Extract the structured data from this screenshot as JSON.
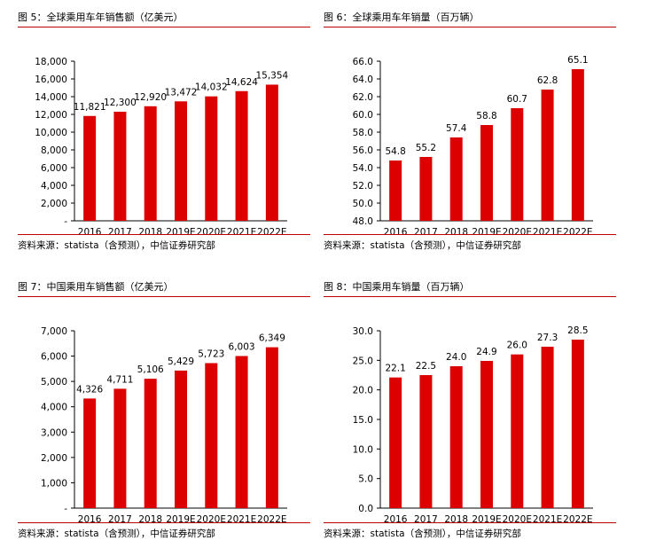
{
  "colors": {
    "bar": "#dc0000",
    "rule": "#c00000",
    "axis": "#000000"
  },
  "chart_data": [
    {
      "type": "bar",
      "title": "图 5：全球乘用车年销售额（亿美元）",
      "source": "资料来源：statista（含预测），中信证券研究部",
      "categories": [
        "2016",
        "2017",
        "2018",
        "2019E",
        "2020E",
        "2021E",
        "2022E"
      ],
      "values": [
        11821,
        12300,
        12920,
        13472,
        14032,
        14624,
        15354
      ],
      "value_labels": [
        "11,821",
        "12,300",
        "12,920",
        "13,472",
        "14,032",
        "14,624",
        "15,354"
      ],
      "ylim": [
        0,
        18000
      ],
      "yticks": [
        "-",
        "2,000",
        "4,000",
        "6,000",
        "8,000",
        "10,000",
        "12,000",
        "14,000",
        "16,000",
        "18,000"
      ],
      "grid": false
    },
    {
      "type": "bar",
      "title": "图 6：全球乘用车年销量（百万辆）",
      "source": "资料来源：statista（含预测），中信证券研究部",
      "categories": [
        "2016",
        "2017",
        "2018",
        "2019E",
        "2020E",
        "2021E",
        "2022E"
      ],
      "values": [
        54.8,
        55.2,
        57.4,
        58.8,
        60.7,
        62.8,
        65.1
      ],
      "value_labels": [
        "54.8",
        "55.2",
        "57.4",
        "58.8",
        "60.7",
        "62.8",
        "65.1"
      ],
      "ylim": [
        48,
        66
      ],
      "yticks": [
        "48.0",
        "50.0",
        "52.0",
        "54.0",
        "56.0",
        "58.0",
        "60.0",
        "62.0",
        "64.0",
        "66.0"
      ],
      "grid": false
    },
    {
      "type": "bar",
      "title": "图 7：中国乘用车销售额（亿美元）",
      "source": "资料来源：statista（含预测），中信证券研究部",
      "categories": [
        "2016",
        "2017",
        "2018",
        "2019E",
        "2020E",
        "2021E",
        "2022E"
      ],
      "values": [
        4326,
        4711,
        5106,
        5429,
        5723,
        6003,
        6349
      ],
      "value_labels": [
        "4,326",
        "4,711",
        "5,106",
        "5,429",
        "5,723",
        "6,003",
        "6,349"
      ],
      "ylim": [
        0,
        7000
      ],
      "yticks": [
        "-",
        "1,000",
        "2,000",
        "3,000",
        "4,000",
        "5,000",
        "6,000",
        "7,000"
      ],
      "grid": false
    },
    {
      "type": "bar",
      "title": "图 8：中国乘用车销量（百万辆）",
      "source": "资料来源：statista（含预测），中信证券研究部",
      "categories": [
        "2016",
        "2017",
        "2018",
        "2019E",
        "2020E",
        "2021E",
        "2022E"
      ],
      "values": [
        22.1,
        22.5,
        24.0,
        24.9,
        26.0,
        27.3,
        28.5
      ],
      "value_labels": [
        "22.1",
        "22.5",
        "24.0",
        "24.9",
        "26.0",
        "27.3",
        "28.5"
      ],
      "ylim": [
        0,
        30
      ],
      "yticks": [
        "0.0",
        "5.0",
        "10.0",
        "15.0",
        "20.0",
        "25.0",
        "30.0"
      ],
      "grid": false
    }
  ]
}
